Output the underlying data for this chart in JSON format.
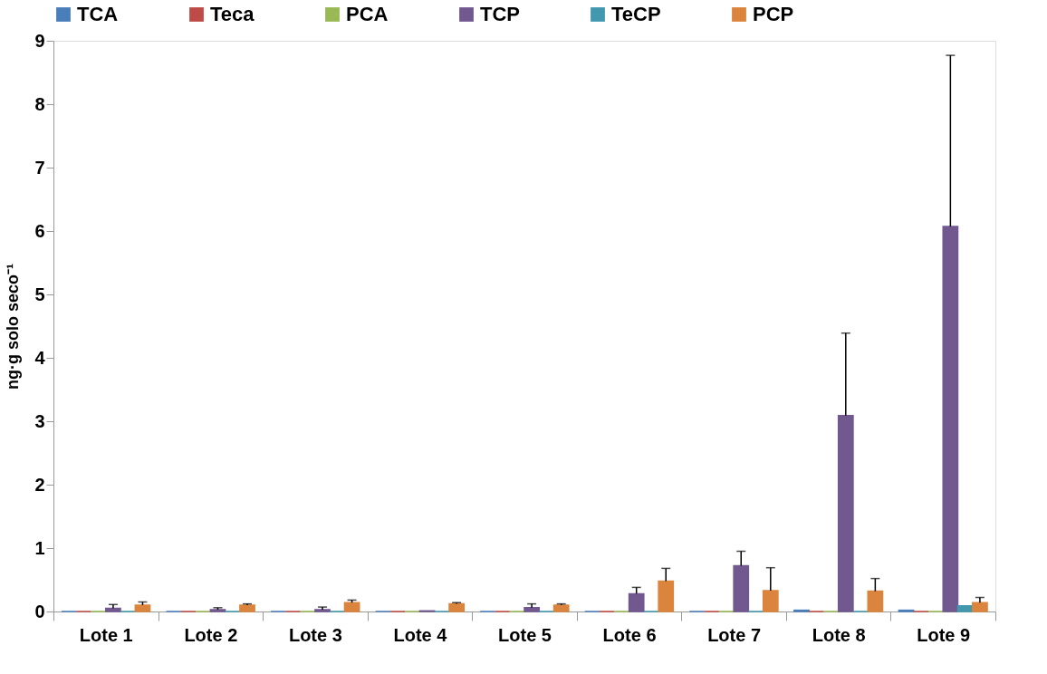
{
  "chart_data": {
    "type": "bar",
    "ylabel": "ng·g solo seco⁻¹",
    "categories": [
      "Lote 1",
      "Lote 2",
      "Lote 3",
      "Lote 4",
      "Lote 5",
      "Lote 6",
      "Lote 7",
      "Lote 8",
      "Lote 9"
    ],
    "series": [
      {
        "name": "TCA",
        "color": "#4a7ebb",
        "values": [
          0,
          0,
          0,
          0,
          0,
          0,
          0,
          0.02,
          0.02
        ]
      },
      {
        "name": "Teca",
        "color": "#be4b48",
        "values": [
          0,
          0,
          0,
          0,
          0,
          0,
          0,
          0,
          0
        ]
      },
      {
        "name": "PCA",
        "color": "#98b954",
        "values": [
          0,
          0,
          0,
          0,
          0,
          0,
          0,
          0,
          0
        ]
      },
      {
        "name": "TCP",
        "color": "#71588f",
        "values": [
          0.05,
          0.03,
          0.03,
          0.01,
          0.06,
          0.28,
          0.72,
          3.09,
          6.07
        ],
        "errors": [
          [
            0.05,
            0.11
          ],
          [
            0.03,
            0.06
          ],
          [
            0.03,
            0.07
          ],
          null,
          [
            0.06,
            0.12
          ],
          [
            0.28,
            0.38
          ],
          [
            0.72,
            0.95
          ],
          [
            3.09,
            4.39
          ],
          [
            6.07,
            8.77
          ]
        ]
      },
      {
        "name": "TeCP",
        "color": "#4198af",
        "values": [
          0,
          0,
          0,
          0,
          0,
          0,
          0,
          0,
          0.09
        ]
      },
      {
        "name": "PCP",
        "color": "#db843d",
        "values": [
          0.1,
          0.1,
          0.14,
          0.12,
          0.1,
          0.48,
          0.33,
          0.32,
          0.14
        ],
        "errors": [
          [
            0.1,
            0.15
          ],
          [
            0.1,
            0.12
          ],
          [
            0.14,
            0.18
          ],
          [
            0.12,
            0.14
          ],
          [
            0.1,
            0.12
          ],
          [
            0.48,
            0.68
          ],
          [
            0.33,
            0.69
          ],
          [
            0.32,
            0.52
          ],
          [
            0.14,
            0.22
          ]
        ]
      }
    ],
    "ylim": [
      0,
      9
    ],
    "yticks": [
      0,
      1,
      2,
      3,
      4,
      5,
      6,
      7,
      8,
      9
    ],
    "grid": false,
    "legend": "top"
  }
}
